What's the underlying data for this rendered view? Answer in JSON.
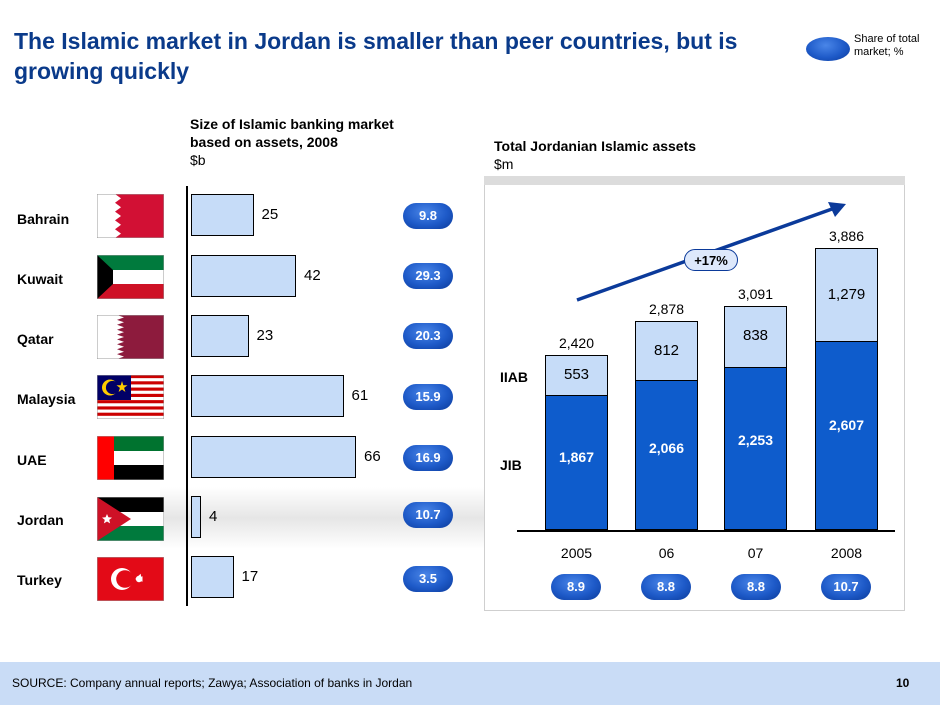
{
  "title": "The Islamic market in Jordan is smaller than peer countries, but is growing quickly",
  "legend": {
    "label": "Share of total market; %",
    "color": "#1e5ac8"
  },
  "left_chart_heading": {
    "line1": "Size of Islamic banking market based on assets, 2008",
    "unit": "$b"
  },
  "right_chart_heading": {
    "line1": "Total Jordanian Islamic assets",
    "unit": "$m"
  },
  "growth_label": "+17%",
  "source": "SOURCE:  Company annual reports; Zawya; Association of banks in Jordan",
  "page_number": "10",
  "colors": {
    "accent_dark": "#0b3a9a",
    "bar_light": "#c6dcf8",
    "bar_dark": "#0e5ccc",
    "title": "#0a3a8a",
    "footer": "#c9dcf6"
  },
  "chart_data": [
    {
      "type": "bar",
      "orientation": "horizontal",
      "title": "Size of Islamic banking market based on assets, 2008",
      "unit": "$b",
      "categories": [
        "Bahrain",
        "Kuwait",
        "Qatar",
        "Malaysia",
        "UAE",
        "Jordan",
        "Turkey"
      ],
      "values": [
        25,
        42,
        23,
        61,
        66,
        4,
        17
      ],
      "share_of_total_market_pct": [
        "9.8",
        "29.3",
        "20.3",
        "15.9",
        "16.9",
        "10.7",
        "3.5"
      ],
      "xlim": [
        0,
        70
      ],
      "highlight": "Jordan"
    },
    {
      "type": "bar",
      "stacked": true,
      "title": "Total Jordanian Islamic assets",
      "unit": "$m",
      "categories": [
        "2005",
        "06",
        "07",
        "2008"
      ],
      "series": [
        {
          "name": "JIB",
          "values": [
            1867,
            2066,
            2253,
            2607
          ],
          "labels": [
            "1,867",
            "2,066",
            "2,253",
            "2,607"
          ]
        },
        {
          "name": "IIAB",
          "values": [
            553,
            812,
            838,
            1279
          ],
          "labels": [
            "553",
            "812",
            "838",
            "1,279"
          ]
        }
      ],
      "totals": [
        "2,420",
        "2,878",
        "3,091",
        "3,886"
      ],
      "share_of_total_market_pct": [
        "8.9",
        "8.8",
        "8.8",
        "10.7"
      ],
      "ylim": [
        0,
        4000
      ],
      "growth_annotation": "+17%"
    }
  ]
}
